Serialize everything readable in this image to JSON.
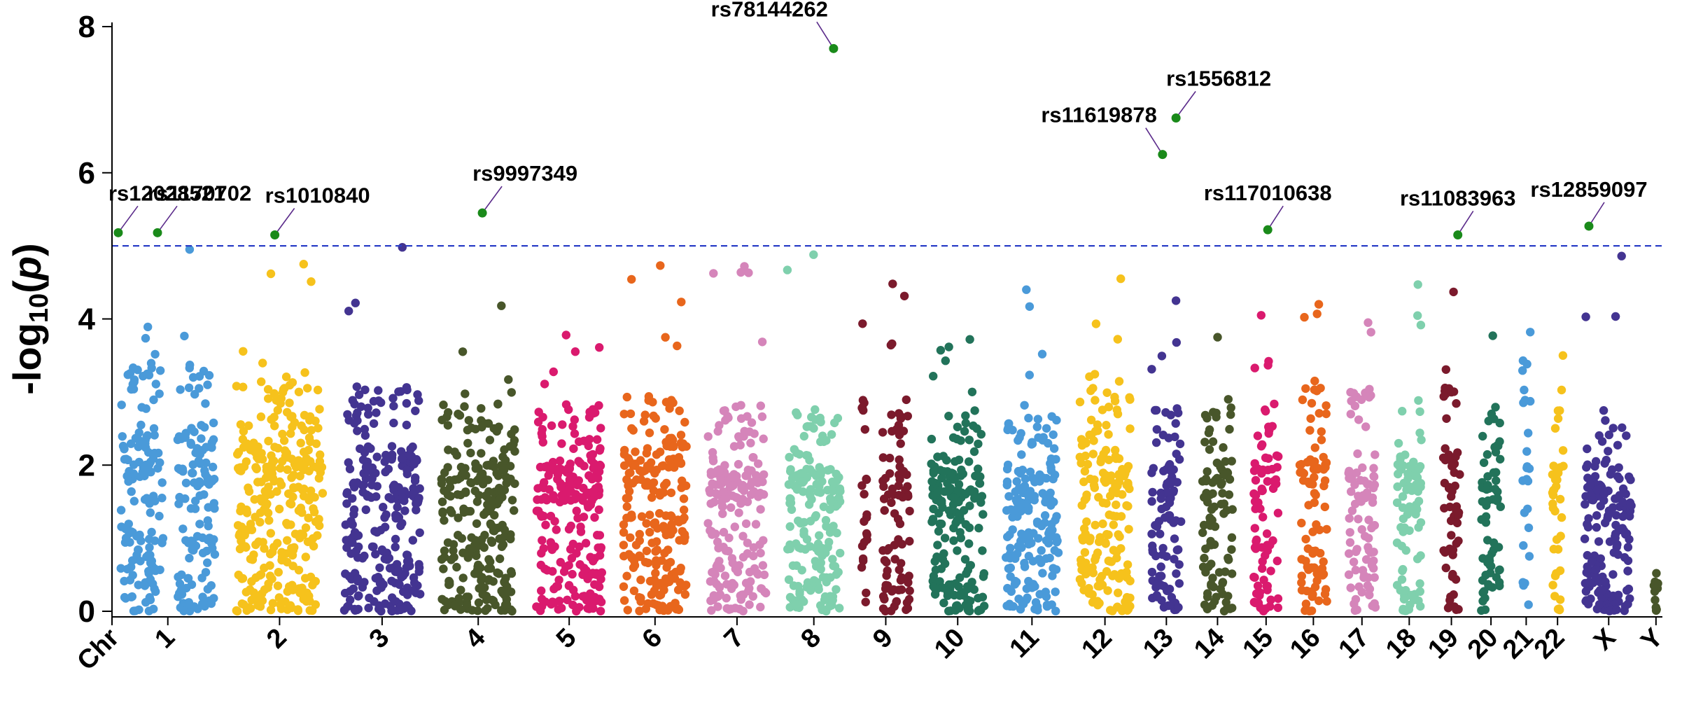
{
  "chart_data": {
    "type": "scatter",
    "subtype": "manhattan",
    "title": "",
    "xlabel": "",
    "ylabel": "-log10(p)",
    "ylabel_parts": {
      "prefix": "-log",
      "subscript": "10",
      "open": "(",
      "var": "p",
      "close": ")"
    },
    "ylim": [
      0,
      8
    ],
    "yticks": [
      "0",
      "2",
      "4",
      "6",
      "8"
    ],
    "x_axis_leading_label": "Chr",
    "significance_threshold": 5,
    "threshold_color": "#2b3fc7",
    "chromosomes": [
      {
        "name": "1",
        "color": "#4a9ad9",
        "peak": 4.95,
        "upper": 3.1,
        "sizes": [
          1.0,
          0.9
        ]
      },
      {
        "name": "2",
        "color": "#f6c21c",
        "peak": 4.75,
        "upper": 2.9,
        "sizes": [
          1.85
        ]
      },
      {
        "name": "3",
        "color": "#433491",
        "peak": 4.98,
        "upper": 2.8,
        "sizes": [
          1.65
        ]
      },
      {
        "name": "4",
        "color": "#48562a",
        "peak": 4.18,
        "upper": 2.6,
        "sizes": [
          1.6
        ]
      },
      {
        "name": "5",
        "color": "#da1a6e",
        "peak": 3.78,
        "upper": 2.6,
        "sizes": [
          1.45
        ]
      },
      {
        "name": "6",
        "color": "#e8661c",
        "peak": 4.73,
        "upper": 2.7,
        "sizes": [
          1.4
        ]
      },
      {
        "name": "7",
        "color": "#d585ba",
        "peak": 4.72,
        "upper": 2.6,
        "sizes": [
          1.3
        ]
      },
      {
        "name": "8",
        "color": "#7fd0ad",
        "peak": 4.88,
        "upper": 2.5,
        "sizes": [
          1.2
        ]
      },
      {
        "name": "9",
        "color": "#7b1a2c",
        "peak": 4.48,
        "upper": 2.7,
        "sizes": [
          0.3,
          0.7
        ]
      },
      {
        "name": "10",
        "color": "#22735a",
        "peak": 3.72,
        "upper": 2.5,
        "sizes": [
          1.2
        ]
      },
      {
        "name": "11",
        "color": "#4a9ad9",
        "peak": 4.4,
        "upper": 2.5,
        "sizes": [
          1.2
        ]
      },
      {
        "name": "12",
        "color": "#f6c21c",
        "peak": 4.55,
        "upper": 2.8,
        "sizes": [
          1.15
        ]
      },
      {
        "name": "13",
        "color": "#433491",
        "peak": 4.25,
        "upper": 2.6,
        "sizes": [
          0.75
        ]
      },
      {
        "name": "14",
        "color": "#48562a",
        "peak": 3.75,
        "upper": 2.5,
        "sizes": [
          0.75
        ]
      },
      {
        "name": "15",
        "color": "#da1a6e",
        "peak": 4.05,
        "upper": 2.6,
        "sizes": [
          0.65
        ]
      },
      {
        "name": "16",
        "color": "#e8661c",
        "peak": 4.2,
        "upper": 2.9,
        "sizes": [
          0.7
        ]
      },
      {
        "name": "17",
        "color": "#d585ba",
        "peak": 3.95,
        "upper": 2.8,
        "sizes": [
          0.7
        ]
      },
      {
        "name": "18",
        "color": "#7fd0ad",
        "peak": 4.47,
        "upper": 2.7,
        "sizes": [
          0.65
        ]
      },
      {
        "name": "19",
        "color": "#7b1a2c",
        "peak": 4.37,
        "upper": 2.8,
        "sizes": [
          0.5
        ]
      },
      {
        "name": "20",
        "color": "#22735a",
        "peak": 3.77,
        "upper": 2.5,
        "sizes": [
          0.55
        ]
      },
      {
        "name": "21",
        "color": "#4a9ad9",
        "peak": 3.82,
        "upper": 3.0,
        "sizes": [
          0.33
        ]
      },
      {
        "name": "22",
        "color": "#f6c21c",
        "peak": 3.5,
        "upper": 2.6,
        "sizes": [
          0.4
        ]
      },
      {
        "name": "X",
        "color": "#433491",
        "peak": 4.86,
        "upper": 2.4,
        "sizes": [
          1.1
        ]
      },
      {
        "name": "Y",
        "color": "#48562a",
        "peak": 0.52,
        "upper": 0.35,
        "sizes": [
          0.25
        ]
      }
    ],
    "significant_snps": [
      {
        "id": "rs12028521",
        "chr": "1",
        "pos": 0.02,
        "y": 5.18,
        "label_pos": "above-right"
      },
      {
        "id": "rs1170702",
        "chr": "1",
        "pos": 0.4,
        "y": 5.18,
        "label_pos": "above-right"
      },
      {
        "id": "rs1010840",
        "chr": "2",
        "pos": 0.45,
        "y": 5.15,
        "label_pos": "above-right"
      },
      {
        "id": "rs9997349",
        "chr": "4",
        "pos": 0.55,
        "y": 5.45,
        "label_pos": "above-right"
      },
      {
        "id": "rs78144262",
        "chr": "8",
        "pos": 0.82,
        "y": 7.7,
        "label_pos": "above-left"
      },
      {
        "id": "rs11619878",
        "chr": "13",
        "pos": 0.4,
        "y": 6.25,
        "label_pos": "above-left"
      },
      {
        "id": "rs1556812",
        "chr": "13",
        "pos": 0.75,
        "y": 6.75,
        "label_pos": "above-right"
      },
      {
        "id": "rs117010638",
        "chr": "15",
        "pos": 0.55,
        "y": 5.22,
        "label_pos": "above"
      },
      {
        "id": "rs11083963",
        "chr": "19",
        "pos": 0.75,
        "y": 5.15,
        "label_pos": "above"
      },
      {
        "id": "rs12859097",
        "chr": "X",
        "pos": 0.15,
        "y": 5.27,
        "label_pos": "above"
      }
    ],
    "significant_point_color": "#1a8a1a"
  }
}
